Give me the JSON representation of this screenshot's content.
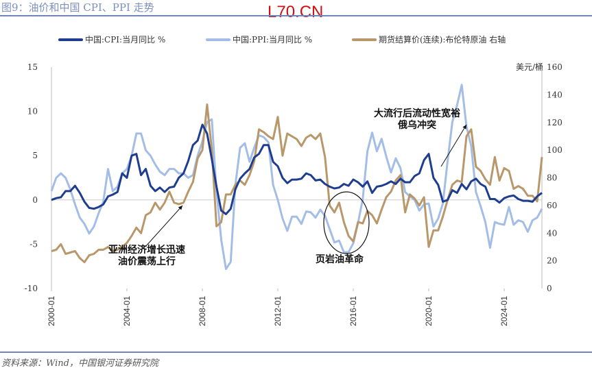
{
  "title": "图9：油价和中国 CPI、PPI 走势",
  "watermark": "L70.CN",
  "source": "资料来源：Wind，中国银河证券研究院",
  "chart_data": {
    "type": "line",
    "x_start": 2000,
    "x_step": 0.25,
    "xlim": [
      2000,
      2026
    ],
    "x_ticks": [
      "2000-01",
      "2004-01",
      "2008-01",
      "2012-01",
      "2016-01",
      "2020-01",
      "2024-01"
    ],
    "x_tick_values": [
      2000,
      2004,
      2008,
      2012,
      2016,
      2020,
      2024
    ],
    "y_left": {
      "lim": [
        -10,
        15
      ],
      "ticks": [
        "15",
        "10",
        "5",
        "0",
        "-5",
        "-10"
      ],
      "tick_values": [
        15,
        10,
        5,
        0,
        -5,
        -10
      ]
    },
    "y_right": {
      "lim": [
        0,
        160
      ],
      "ticks": [
        "160",
        "140",
        "120",
        "100",
        "80",
        "60",
        "40",
        "20",
        "0"
      ],
      "tick_values": [
        160,
        140,
        120,
        100,
        80,
        60,
        40,
        20,
        0
      ],
      "unit": "美元/桶"
    },
    "series": [
      {
        "name": "中国:CPI:当月同比 %",
        "axis": "left",
        "color": "#1f3d8f",
        "values": [
          0.0,
          0.2,
          0.3,
          1.0,
          1.0,
          1.6,
          0.8,
          -0.2,
          -0.9,
          -1.0,
          -0.8,
          -0.5,
          0.4,
          0.6,
          0.9,
          3.0,
          2.5,
          5.0,
          5.2,
          2.8,
          3.5,
          1.6,
          1.0,
          1.4,
          0.9,
          1.4,
          1.5,
          2.5,
          3.0,
          4.4,
          6.2,
          6.7,
          8.5,
          7.5,
          4.6,
          1.5,
          -1.2,
          -1.6,
          -1.0,
          1.2,
          2.4,
          3.0,
          3.5,
          4.8,
          5.2,
          6.2,
          6.2,
          4.3,
          3.8,
          2.5,
          1.9,
          2.3,
          2.3,
          2.4,
          3.0,
          2.8,
          2.2,
          2.3,
          1.8,
          1.5,
          1.3,
          1.4,
          1.8,
          1.6,
          2.3,
          2.0,
          1.5,
          2.1,
          0.8,
          1.5,
          1.6,
          1.8,
          2.1,
          1.8,
          2.4,
          2.0,
          2.0,
          2.7,
          3.0,
          4.5,
          5.2,
          2.5,
          1.7,
          -0.2,
          0.0,
          1.1,
          0.8,
          1.8,
          1.2,
          2.1,
          2.4,
          1.8,
          1.5,
          0.1,
          0.1,
          -0.3,
          0.2,
          0.4,
          0.5,
          0.1,
          -0.1,
          -0.1,
          -0.2,
          0.4,
          0.8
        ]
      },
      {
        "name": "中国:PPI:当月同比 %",
        "axis": "left",
        "color": "#a3bde6",
        "values": [
          1.0,
          2.5,
          3.0,
          2.5,
          1.2,
          -0.5,
          -2.0,
          -2.7,
          -3.8,
          -3.0,
          -1.5,
          -0.2,
          3.5,
          1.0,
          1.5,
          3.0,
          3.5,
          5.0,
          7.5,
          7.5,
          5.6,
          5.0,
          4.0,
          3.2,
          2.8,
          3.5,
          3.5,
          3.0,
          3.0,
          2.5,
          2.8,
          5.0,
          6.6,
          8.8,
          9.1,
          1.0,
          -4.5,
          -7.8,
          -7.0,
          1.7,
          5.9,
          6.4,
          4.3,
          5.9,
          7.3,
          7.1,
          6.5,
          1.7,
          0.0,
          -2.1,
          -3.5,
          -1.9,
          -1.9,
          -2.7,
          -1.3,
          -1.4,
          -2.0,
          -1.1,
          -1.8,
          -3.3,
          -4.8,
          -4.6,
          -5.9,
          -5.9,
          -4.9,
          -2.6,
          0.1,
          5.5,
          7.6,
          5.5,
          6.9,
          4.9,
          3.1,
          4.7,
          3.6,
          0.9,
          0.4,
          0.0,
          -1.2,
          -0.5,
          -0.4,
          -3.0,
          -2.1,
          -0.4,
          4.4,
          8.8,
          10.7,
          13.0,
          8.3,
          6.1,
          0.9,
          -0.7,
          -2.5,
          -5.4,
          -2.5,
          -2.7,
          -2.8,
          -0.8,
          -2.8,
          -2.3,
          -2.5,
          -3.6,
          -2.3,
          -2.0,
          -1.0
        ]
      },
      {
        "name": "期货结算价(连续):布伦特原油 右轴",
        "axis": "right",
        "color": "#b8976a",
        "values": [
          27,
          28,
          32,
          25,
          26,
          27,
          22,
          19,
          24,
          25,
          28,
          28,
          30,
          27,
          28,
          30,
          33,
          38,
          44,
          40,
          53,
          55,
          62,
          57,
          62,
          70,
          62,
          61,
          62,
          70,
          77,
          94,
          100,
          133,
          100,
          45,
          48,
          68,
          68,
          75,
          78,
          75,
          82,
          92,
          115,
          113,
          110,
          108,
          124,
          96,
          112,
          110,
          108,
          103,
          109,
          111,
          108,
          112,
          95,
          60,
          55,
          62,
          48,
          38,
          34,
          48,
          47,
          56,
          53,
          47,
          57,
          66,
          70,
          78,
          82,
          55,
          68,
          65,
          60,
          66,
          30,
          42,
          42,
          52,
          64,
          75,
          78,
          77,
          110,
          115,
          88,
          85,
          79,
          75,
          95,
          78,
          87,
          85,
          72,
          74,
          72,
          67,
          67,
          63,
          95
        ]
      }
    ],
    "annotations": [
      {
        "text": [
          "亚洲经济增长迅速",
          "油价震荡上行"
        ]
      },
      {
        "text": [
          "页岩油革命"
        ]
      },
      {
        "text": [
          "大流行后流动性宽裕",
          "俄乌冲突"
        ]
      }
    ],
    "legend": "top"
  }
}
